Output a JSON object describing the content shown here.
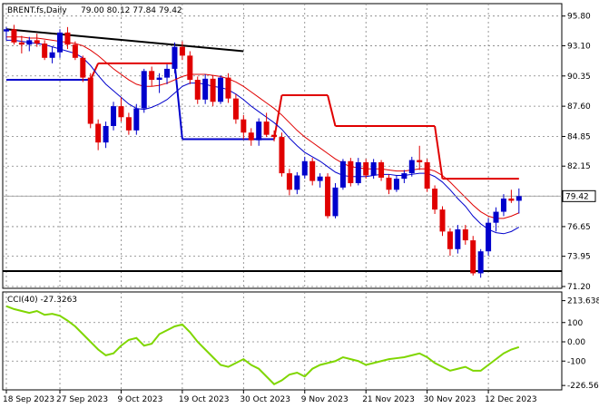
{
  "chart_data": [
    {
      "type": "candlestick",
      "title": "BRENT.fs,Daily",
      "ohlc_label": "79.00 80.12 77.84 79.42",
      "last_price_label": "79.42",
      "last_price": 79.42,
      "ylim": [
        71.2,
        96.6
      ],
      "y_ticks": [
        "95.80",
        "93.10",
        "90.35",
        "87.60",
        "84.85",
        "82.15",
        "79.42",
        "76.65",
        "73.95",
        "71.20"
      ],
      "y_tick_values": [
        95.8,
        93.1,
        90.35,
        87.6,
        84.85,
        82.15,
        79.42,
        76.65,
        73.95,
        71.2
      ],
      "x_labels": [
        "18 Sep 2023",
        "27 Sep 2023",
        "9 Oct 2023",
        "19 Oct 2023",
        "30 Oct 2023",
        "9 Nov 2023",
        "21 Nov 2023",
        "30 Nov 2023",
        "12 Dec 2023"
      ],
      "x_label_bars": [
        0,
        7,
        15,
        23,
        31,
        39,
        47,
        55,
        63
      ],
      "candles": [
        [
          94.4,
          94.8,
          93.6,
          94.6
        ],
        [
          94.6,
          95.0,
          93.2,
          93.4
        ],
        [
          93.4,
          94.0,
          92.4,
          93.2
        ],
        [
          93.2,
          93.9,
          92.6,
          93.6
        ],
        [
          93.6,
          94.2,
          93.0,
          93.3
        ],
        [
          93.3,
          93.6,
          91.8,
          92.0
        ],
        [
          92.0,
          93.0,
          91.5,
          92.5
        ],
        [
          92.5,
          94.6,
          92.0,
          94.3
        ],
        [
          94.3,
          94.8,
          92.8,
          93.2
        ],
        [
          93.2,
          93.5,
          91.8,
          92.0
        ],
        [
          92.0,
          92.2,
          89.8,
          90.2
        ],
        [
          90.2,
          90.6,
          85.6,
          86.0
        ],
        [
          86.0,
          86.4,
          83.6,
          84.3
        ],
        [
          84.3,
          86.2,
          83.8,
          85.8
        ],
        [
          85.8,
          88.0,
          85.4,
          87.6
        ],
        [
          87.6,
          88.4,
          86.2,
          86.6
        ],
        [
          86.6,
          87.0,
          85.0,
          85.4
        ],
        [
          85.4,
          87.8,
          85.0,
          87.4
        ],
        [
          87.4,
          91.0,
          87.0,
          90.8
        ],
        [
          90.8,
          91.2,
          89.4,
          90.0
        ],
        [
          90.0,
          90.6,
          88.8,
          90.2
        ],
        [
          90.2,
          91.4,
          89.6,
          91.0
        ],
        [
          91.0,
          93.4,
          90.6,
          93.0
        ],
        [
          93.0,
          93.5,
          91.8,
          92.2
        ],
        [
          92.2,
          92.6,
          89.6,
          90.0
        ],
        [
          90.0,
          90.3,
          87.8,
          88.2
        ],
        [
          88.2,
          90.5,
          87.8,
          90.1
        ],
        [
          90.1,
          90.4,
          87.6,
          88.0
        ],
        [
          88.0,
          90.4,
          87.8,
          90.2
        ],
        [
          90.2,
          90.6,
          87.9,
          88.3
        ],
        [
          88.3,
          88.7,
          86.0,
          86.4
        ],
        [
          86.4,
          86.8,
          84.6,
          85.2
        ],
        [
          85.2,
          85.6,
          84.0,
          84.5
        ],
        [
          84.5,
          86.5,
          84.0,
          86.2
        ],
        [
          86.2,
          87.0,
          84.8,
          85.0
        ],
        [
          85.0,
          85.4,
          84.4,
          84.8
        ],
        [
          84.8,
          85.2,
          81.2,
          81.5
        ],
        [
          81.5,
          81.9,
          79.5,
          80.0
        ],
        [
          80.0,
          81.6,
          79.6,
          81.3
        ],
        [
          81.3,
          83.0,
          81.0,
          82.6
        ],
        [
          82.6,
          82.9,
          80.4,
          80.8
        ],
        [
          80.8,
          81.5,
          80.2,
          81.2
        ],
        [
          81.2,
          81.5,
          77.4,
          77.6
        ],
        [
          77.6,
          80.6,
          77.4,
          80.2
        ],
        [
          80.2,
          82.8,
          80.0,
          82.6
        ],
        [
          82.6,
          82.9,
          80.3,
          80.6
        ],
        [
          80.6,
          82.9,
          80.4,
          82.5
        ],
        [
          82.5,
          82.8,
          81.0,
          81.3
        ],
        [
          81.3,
          82.8,
          81.0,
          82.5
        ],
        [
          82.5,
          82.7,
          80.8,
          81.1
        ],
        [
          81.1,
          81.4,
          79.6,
          80.0
        ],
        [
          80.0,
          81.3,
          79.8,
          81.0
        ],
        [
          81.0,
          81.8,
          80.6,
          81.5
        ],
        [
          81.5,
          83.0,
          81.2,
          82.7
        ],
        [
          82.7,
          84.0,
          81.8,
          82.5
        ],
        [
          82.5,
          82.8,
          79.8,
          80.1
        ],
        [
          80.1,
          80.4,
          77.8,
          78.2
        ],
        [
          78.2,
          78.5,
          75.8,
          76.2
        ],
        [
          76.2,
          76.5,
          74.0,
          74.6
        ],
        [
          74.6,
          76.8,
          74.2,
          76.4
        ],
        [
          76.4,
          76.8,
          75.0,
          75.4
        ],
        [
          75.4,
          75.8,
          72.2,
          72.4
        ],
        [
          72.4,
          74.6,
          72.0,
          74.4
        ],
        [
          74.4,
          77.4,
          74.0,
          77.0
        ],
        [
          77.0,
          78.4,
          76.2,
          78.0
        ],
        [
          78.0,
          79.6,
          77.6,
          79.2
        ],
        [
          79.2,
          80.0,
          78.8,
          79.0
        ],
        [
          79.0,
          80.12,
          77.84,
          79.42
        ]
      ],
      "ma_fast": [
        93.6,
        93.6,
        93.5,
        93.4,
        93.3,
        93.2,
        93.0,
        92.8,
        92.6,
        92.4,
        92.0,
        91.3,
        90.4,
        89.6,
        89.0,
        88.4,
        87.8,
        87.4,
        87.3,
        87.5,
        87.8,
        88.2,
        88.8,
        89.4,
        89.7,
        89.7,
        89.6,
        89.4,
        89.3,
        89.1,
        88.7,
        88.2,
        87.6,
        87.1,
        86.6,
        86.1,
        85.5,
        84.7,
        84.0,
        83.4,
        83.0,
        82.6,
        82.1,
        81.6,
        81.3,
        81.2,
        81.2,
        81.2,
        81.3,
        81.4,
        81.4,
        81.3,
        81.3,
        81.4,
        81.5,
        81.5,
        81.2,
        80.7,
        80.0,
        79.2,
        78.5,
        77.6,
        76.9,
        76.4,
        76.1,
        76.0,
        76.2,
        76.6
      ],
      "ma_slow": [
        93.9,
        93.9,
        93.9,
        93.8,
        93.8,
        93.7,
        93.6,
        93.5,
        93.4,
        93.3,
        93.1,
        92.7,
        92.2,
        91.6,
        91.0,
        90.5,
        90.0,
        89.6,
        89.4,
        89.4,
        89.5,
        89.7,
        90.0,
        90.3,
        90.5,
        90.5,
        90.5,
        90.4,
        90.3,
        90.1,
        89.8,
        89.4,
        88.9,
        88.4,
        87.9,
        87.4,
        86.8,
        86.1,
        85.4,
        84.8,
        84.3,
        83.8,
        83.3,
        82.8,
        82.4,
        82.1,
        82.0,
        81.9,
        81.9,
        81.9,
        81.8,
        81.7,
        81.7,
        81.8,
        81.9,
        81.9,
        81.7,
        81.3,
        80.7,
        80.0,
        79.3,
        78.6,
        78.0,
        77.6,
        77.4,
        77.4,
        77.6,
        77.9
      ],
      "stop_levels": [
        {
          "from": 0,
          "to": 11,
          "value": 90.0,
          "color": "#0000cc"
        },
        {
          "from": 12,
          "to": 22,
          "value": 91.5,
          "color": "#e00000"
        },
        {
          "from": 23,
          "to": 35,
          "value": 84.6,
          "color": "#0000cc"
        },
        {
          "from": 36,
          "to": 42,
          "value": 88.6,
          "color": "#e00000"
        },
        {
          "from": 43,
          "to": 56,
          "value": 85.8,
          "color": "#e00000"
        },
        {
          "from": 57,
          "to": 67,
          "value": 81.0,
          "color": "#e00000"
        }
      ],
      "trendline": {
        "from": [
          0,
          94.6
        ],
        "to": [
          31,
          92.6
        ],
        "color": "#000000"
      },
      "support_line": 72.6,
      "colors": {
        "up": "#0000cc",
        "down": "#e00000",
        "ma_fast": "#0000cc",
        "ma_slow": "#e00000",
        "grid": "#808080"
      }
    },
    {
      "type": "line",
      "title": "CCI(40) -27.3263",
      "ylim": [
        -240,
        240
      ],
      "y_ticks": [
        "213.6382",
        "100",
        "0.00",
        "-100",
        "-226.562"
      ],
      "y_tick_values": [
        213.6382,
        100,
        0,
        -100,
        -226.562
      ],
      "values": [
        185,
        170,
        160,
        150,
        160,
        140,
        145,
        135,
        110,
        80,
        40,
        0,
        -40,
        -70,
        -60,
        -20,
        10,
        20,
        -20,
        -10,
        40,
        60,
        80,
        90,
        50,
        0,
        -40,
        -80,
        -120,
        -130,
        -110,
        -90,
        -120,
        -140,
        -180,
        -220,
        -200,
        -170,
        -160,
        -180,
        -140,
        -120,
        -110,
        -100,
        -80,
        -90,
        -100,
        -120,
        -110,
        -100,
        -90,
        -85,
        -80,
        -70,
        -60,
        -80,
        -110,
        -130,
        -150,
        -140,
        -130,
        -150,
        -150,
        -120,
        -90,
        -60,
        -40,
        -27.3263
      ],
      "color": "#7fd600"
    }
  ]
}
